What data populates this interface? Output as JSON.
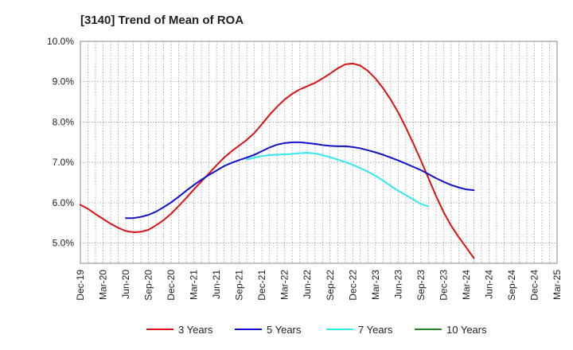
{
  "chart_data": {
    "type": "line",
    "title": "[3140]  Trend of Mean of ROA",
    "xlabel": "",
    "ylabel": "",
    "ylim": [
      4.5,
      10.0
    ],
    "yticks": [
      5.0,
      6.0,
      7.0,
      8.0,
      9.0,
      10.0
    ],
    "ytick_labels": [
      "5.0%",
      "6.0%",
      "7.0%",
      "8.0%",
      "9.0%",
      "10.0%"
    ],
    "x_labels": [
      "Dec-19",
      "Mar-20",
      "Jun-20",
      "Sep-20",
      "Dec-20",
      "Mar-21",
      "Jun-21",
      "Sep-21",
      "Dec-21",
      "Mar-22",
      "Jun-22",
      "Sep-22",
      "Dec-22",
      "Mar-23",
      "Jun-23",
      "Sep-23",
      "Dec-23",
      "Mar-24",
      "Jun-24",
      "Sep-24",
      "Dec-24",
      "Mar-25"
    ],
    "grid": true,
    "legend_position": "bottom",
    "series": [
      {
        "name": "3 Years",
        "color": "#dd1111",
        "start_index": 0,
        "values": [
          5.95,
          5.85,
          5.72,
          5.6,
          5.48,
          5.38,
          5.3,
          5.27,
          5.28,
          5.33,
          5.44,
          5.57,
          5.73,
          5.92,
          6.12,
          6.33,
          6.53,
          6.73,
          6.93,
          7.12,
          7.28,
          7.42,
          7.56,
          7.73,
          7.95,
          8.18,
          8.38,
          8.56,
          8.7,
          8.81,
          8.89,
          8.97,
          9.08,
          9.2,
          9.33,
          9.43,
          9.45,
          9.4,
          9.27,
          9.08,
          8.84,
          8.56,
          8.24,
          7.87,
          7.47,
          7.05,
          6.61,
          6.17,
          5.77,
          5.43,
          5.15,
          4.89,
          4.63
        ]
      },
      {
        "name": "5 Years",
        "color": "#1111cc",
        "start_index": 6,
        "values": [
          5.62,
          5.62,
          5.65,
          5.7,
          5.78,
          5.89,
          6.01,
          6.15,
          6.3,
          6.44,
          6.57,
          6.69,
          6.8,
          6.91,
          6.99,
          7.06,
          7.12,
          7.19,
          7.28,
          7.37,
          7.44,
          7.48,
          7.5,
          7.5,
          7.48,
          7.46,
          7.43,
          7.41,
          7.4,
          7.4,
          7.38,
          7.35,
          7.3,
          7.25,
          7.19,
          7.12,
          7.05,
          6.97,
          6.89,
          6.81,
          6.71,
          6.61,
          6.52,
          6.44,
          6.38,
          6.33,
          6.31
        ]
      },
      {
        "name": "7 Years",
        "color": "#33e8f0",
        "start_index": 22,
        "values": [
          7.07,
          7.12,
          7.16,
          7.18,
          7.19,
          7.2,
          7.21,
          7.23,
          7.24,
          7.22,
          7.18,
          7.13,
          7.07,
          7.01,
          6.94,
          6.86,
          6.77,
          6.67,
          6.55,
          6.42,
          6.3,
          6.19,
          6.08,
          5.97,
          5.91
        ]
      },
      {
        "name": "10 Years",
        "color": "#228822",
        "start_index": 0,
        "values": []
      }
    ]
  }
}
